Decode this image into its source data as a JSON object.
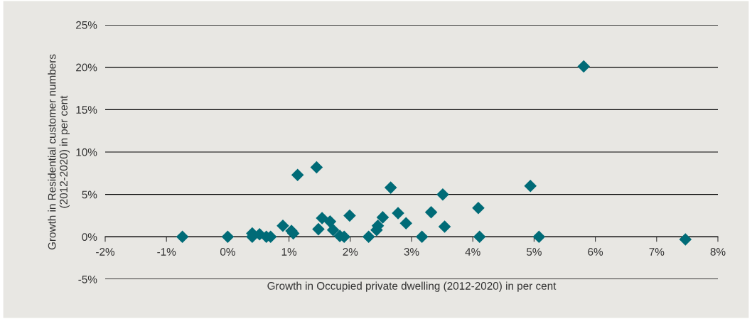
{
  "chart_data": {
    "type": "scatter",
    "xlabel": "Growth in Occupied private dwelling (2012-2020) in per cent",
    "ylabel": "Growth in Residential customer numbers\n(2012-2020) in per cent",
    "marker": "diamond",
    "grid": "y",
    "xlim": [
      -2,
      8
    ],
    "ylim": [
      -5,
      25
    ],
    "xticks": [
      {
        "value": -2,
        "label": "-2%"
      },
      {
        "value": -1,
        "label": "-1%"
      },
      {
        "value": 0,
        "label": "0%"
      },
      {
        "value": 1,
        "label": "1%"
      },
      {
        "value": 2,
        "label": "2%"
      },
      {
        "value": 3,
        "label": "3%"
      },
      {
        "value": 4,
        "label": "4%"
      },
      {
        "value": 5,
        "label": "5%"
      },
      {
        "value": 6,
        "label": "6%"
      },
      {
        "value": 7,
        "label": "7%"
      },
      {
        "value": 8,
        "label": "8%"
      }
    ],
    "yticks": [
      {
        "value": -5,
        "label": "-5%"
      },
      {
        "value": 0,
        "label": "0%"
      },
      {
        "value": 5,
        "label": "5%"
      },
      {
        "value": 10,
        "label": "10%"
      },
      {
        "value": 15,
        "label": "15%"
      },
      {
        "value": 20,
        "label": "20%"
      },
      {
        "value": 25,
        "label": "25%"
      }
    ],
    "series": [
      {
        "color": "#006b77",
        "x": [
          -0.74,
          0.0,
          0.4,
          0.4,
          0.52,
          0.63,
          0.7,
          0.9,
          1.04,
          1.07,
          1.14,
          1.45,
          1.48,
          1.54,
          1.67,
          1.72,
          1.83,
          1.9,
          1.99,
          2.3,
          2.43,
          2.45,
          2.53,
          2.66,
          2.78,
          2.91,
          3.17,
          3.32,
          3.51,
          3.54,
          4.09,
          4.11,
          4.94,
          5.08,
          5.81,
          7.47
        ],
        "values": [
          0,
          0,
          0.4,
          0,
          0.3,
          0,
          0,
          1.3,
          0.7,
          0.4,
          7.3,
          8.2,
          0.9,
          2.2,
          1.8,
          0.8,
          0.1,
          0,
          2.5,
          0,
          0.8,
          1.3,
          2.3,
          5.8,
          2.8,
          1.6,
          0,
          2.9,
          5.0,
          1.2,
          3.4,
          0,
          6.0,
          0,
          20.1,
          -0.3
        ]
      }
    ]
  }
}
